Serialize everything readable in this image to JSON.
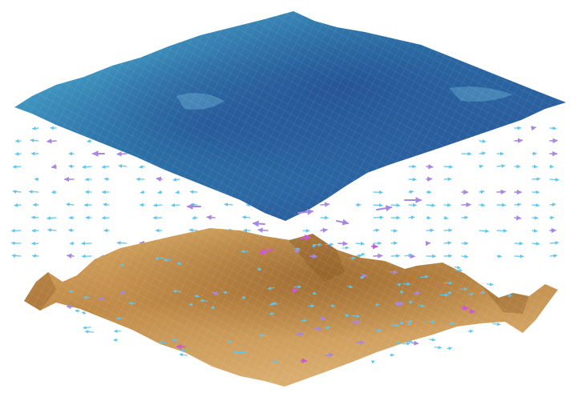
{
  "colors": {
    "background": "#ffffff",
    "top_surface_base": "#2f7fb0",
    "top_surface_light": "#5fb4d2",
    "top_surface_dark": "#23488e",
    "bottom_surface_base": "#c8954f",
    "bottom_surface_light": "#e0b878",
    "bottom_surface_dark": "#8b5a25",
    "vector_cyan": "#5fc6ec",
    "vector_violet": "#a787e6",
    "vector_magenta": "#cc5ad6",
    "mesh_line": "#ffffff"
  },
  "legend": [],
  "labels": []
}
